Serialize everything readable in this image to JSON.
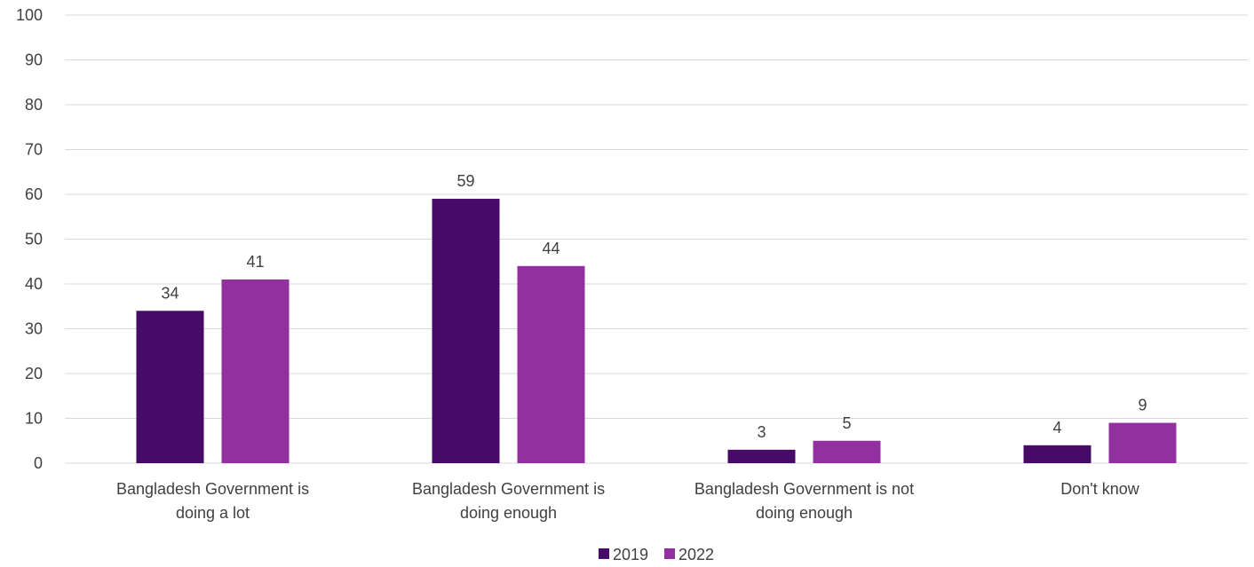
{
  "chart_data": {
    "type": "bar",
    "title": "",
    "xlabel": "",
    "ylabel": "",
    "ylim": [
      0,
      100
    ],
    "yticks": [
      0,
      10,
      20,
      30,
      40,
      50,
      60,
      70,
      80,
      90,
      100
    ],
    "grid": true,
    "legend_position": "bottom",
    "categories": [
      [
        "Bangladesh Government is",
        "doing a lot"
      ],
      [
        "Bangladesh Government is",
        "doing enough"
      ],
      [
        "Bangladesh Government is not",
        "doing enough"
      ],
      [
        "Don't know"
      ]
    ],
    "series": [
      {
        "name": "2019",
        "color": "#450b67",
        "values": [
          34,
          59,
          3,
          4
        ]
      },
      {
        "name": "2022",
        "color": "#93309f",
        "values": [
          41,
          44,
          5,
          9
        ]
      }
    ]
  }
}
